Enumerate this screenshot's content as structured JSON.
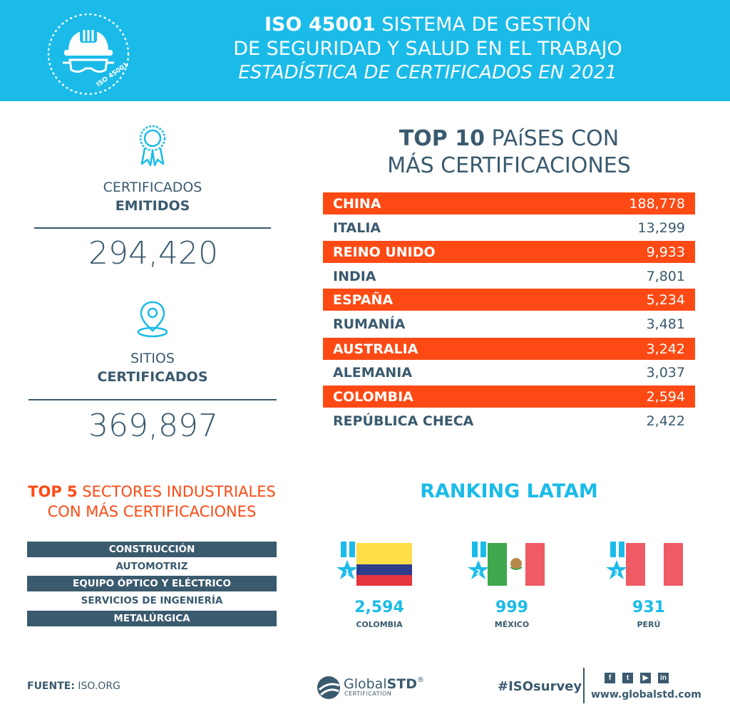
{
  "header": {
    "title_bold": "ISO 45001",
    "title_rest": " SISTEMA DE GESTIÓN",
    "title_line2": "DE SEGURIDAD Y SALUD EN EL TRABAJO",
    "subtitle": "ESTADÍSTICA DE CERTIFICADOS EN 2021",
    "badge_text": "ISO 45001"
  },
  "stats": {
    "certificates_label": "CERTIFICADOS",
    "certificates_label_bold": "EMITIDOS",
    "certificates_value": "294,420",
    "sites_label": "SITIOS",
    "sites_label_bold": "CERTIFICADOS",
    "sites_value": "369,897"
  },
  "top10": {
    "title_bold": "TOP 10",
    "title_rest": " PAíSES CON",
    "title_line2": "MÁS CERTIFICACIONES",
    "rows": [
      {
        "country": "CHINA",
        "value": "188,778"
      },
      {
        "country": "ITALIA",
        "value": "13,299"
      },
      {
        "country": "REINO UNIDO",
        "value": "9,933"
      },
      {
        "country": "INDIA",
        "value": "7,801"
      },
      {
        "country": "ESPAÑA",
        "value": "5,234"
      },
      {
        "country": "RUMANÍA",
        "value": "3,481"
      },
      {
        "country": "AUSTRALIA",
        "value": "3,242"
      },
      {
        "country": "ALEMANIA",
        "value": "3,037"
      },
      {
        "country": "COLOMBIA",
        "value": "2,594"
      },
      {
        "country": "REPÚBLICA CHECA",
        "value": "2,422"
      }
    ]
  },
  "sectors": {
    "title_bold": "TOP 5",
    "title_rest": " SECTORES INDUSTRIALES",
    "title_line2": "CON MÁS CERTIFICACIONES",
    "items": [
      "CONSTRUCCIÓN",
      "AUTOMOTRIZ",
      "EQUIPO ÓPTICO Y ELÉCTRICO",
      "SERVICIOS DE INGENIERÍA",
      "METALÚRGICA"
    ]
  },
  "ranking": {
    "title": "RANKING LATAM",
    "items": [
      {
        "rank": "1",
        "value": "2,594",
        "country": "COLOMBIA"
      },
      {
        "rank": "2",
        "value": "999",
        "country": "MÉXICO"
      },
      {
        "rank": "3",
        "value": "931",
        "country": "PERÚ"
      }
    ]
  },
  "footer": {
    "source_label": "FUENTE:",
    "source_value": " ISO.ORG",
    "logo_global": "Global",
    "logo_std": "STD",
    "logo_reg": "®",
    "logo_sub": "CERTIFICATION",
    "hashtag": "#ISOsurvey",
    "website": "www.globalstd.com"
  },
  "colors": {
    "header_bg": "#1bbbe9",
    "accent_orange": "#fd4a14",
    "dark_slate": "#3a5a6e",
    "ranking_blue": "#1bbbe9"
  },
  "icons": [
    "hard-hat-icon",
    "award-ribbon-icon",
    "location-pin-icon",
    "medal-star-icon",
    "facebook-icon",
    "twitter-icon",
    "youtube-icon",
    "linkedin-icon"
  ]
}
